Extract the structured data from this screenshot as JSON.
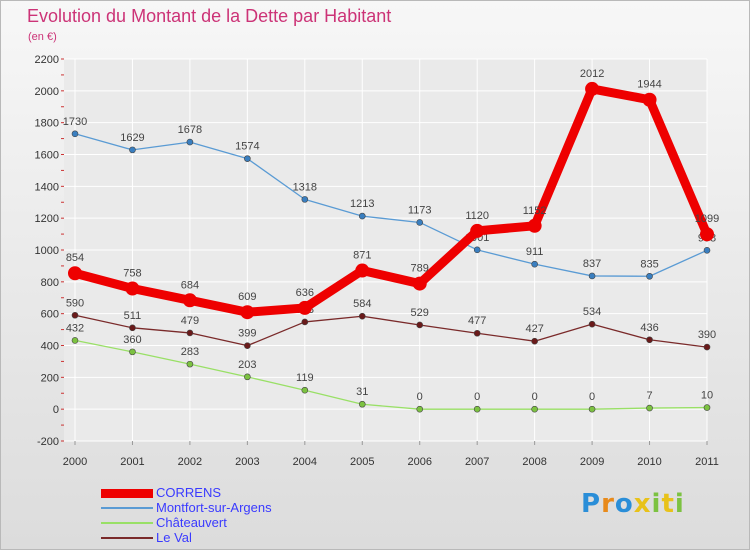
{
  "title": "Evolution du Montant de la Dette par Habitant",
  "unit": "(en €)",
  "brand": {
    "letters": [
      "P",
      "r",
      "o",
      "x",
      "i",
      "t",
      "i"
    ],
    "colors": [
      "#2a8ed8",
      "#e88a1a",
      "#2a8ed8",
      "#e8c21a",
      "#7cc241",
      "#e8c21a",
      "#7cc241"
    ]
  },
  "colors": {
    "title": "#cc3377",
    "axis_text": "#333333",
    "grid": "#ffffff",
    "legend_text": "#3a3aff"
  },
  "chart_data": {
    "type": "line",
    "title": "Evolution du Montant de la Dette par Habitant",
    "ylabel": "(en €)",
    "x": [
      "2000",
      "2001",
      "2002",
      "2003",
      "2004",
      "2005",
      "2006",
      "2007",
      "2008",
      "2009",
      "2010",
      "2011"
    ],
    "ylim": [
      -200,
      2200
    ],
    "yticks": [
      -200,
      0,
      200,
      400,
      600,
      800,
      1000,
      1200,
      1400,
      1600,
      1800,
      2000,
      2200
    ],
    "grid": true,
    "legend_position": "bottom-left",
    "series": [
      {
        "name": "CORRENS",
        "color": "#ee0000",
        "point_color": "#ee0000",
        "emphasis": true,
        "values": [
          854,
          758,
          684,
          609,
          636,
          871,
          789,
          1120,
          1152,
          2012,
          1944,
          1099
        ]
      },
      {
        "name": "Montfort-sur-Argens",
        "color": "#5a9bd4",
        "point_color": "#3a7fc0",
        "emphasis": false,
        "values": [
          1730,
          1629,
          1678,
          1574,
          1318,
          1213,
          1173,
          1001,
          911,
          837,
          835,
          998
        ]
      },
      {
        "name": "Châteauvert",
        "color": "#99e066",
        "point_color": "#7cc241",
        "emphasis": false,
        "values": [
          432,
          360,
          283,
          203,
          119,
          31,
          0,
          0,
          0,
          0,
          7,
          10
        ]
      },
      {
        "name": "Le Val",
        "color": "#7a2a2a",
        "point_color": "#6a1a1a",
        "emphasis": false,
        "values": [
          590,
          511,
          479,
          399,
          548,
          584,
          529,
          477,
          427,
          534,
          436,
          390
        ]
      }
    ]
  }
}
